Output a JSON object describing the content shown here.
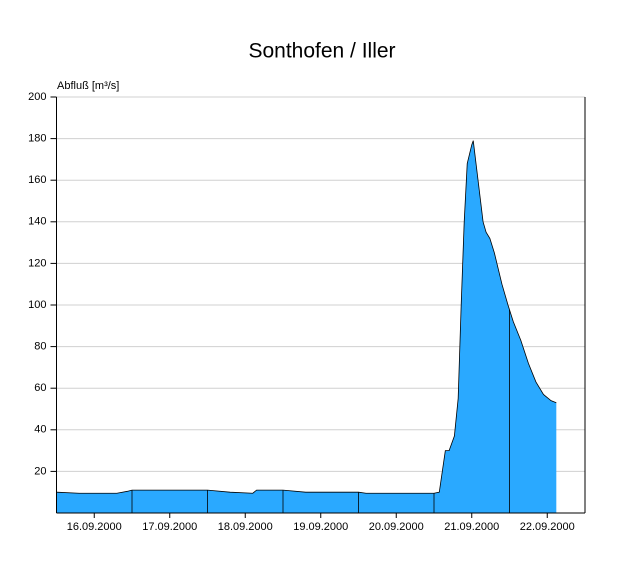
{
  "chart_data": {
    "type": "area",
    "title": "Sonthofen / Iller",
    "y_label": "Abfluß [m³/s]",
    "x": [
      0,
      0.3,
      0.8,
      0.95,
      1.0,
      2.0,
      2.3,
      2.6,
      2.65,
      3.0,
      3.3,
      4.0,
      4.1,
      5.0,
      5.07,
      5.15,
      5.2,
      5.27,
      5.32,
      5.36,
      5.4,
      5.44,
      5.5,
      5.52,
      5.55,
      5.6,
      5.65,
      5.69,
      5.74,
      5.8,
      5.9,
      5.98,
      6.05,
      6.15,
      6.25,
      6.35,
      6.45,
      6.55,
      6.62
    ],
    "values": [
      10,
      9.5,
      9.5,
      10.5,
      11,
      11,
      10,
      9.5,
      11,
      11,
      10,
      10,
      9.5,
      9.5,
      10,
      30,
      30,
      37,
      55,
      100,
      140,
      168,
      177,
      179,
      170,
      155,
      140,
      135,
      132,
      125,
      110,
      100,
      92,
      83,
      72,
      63,
      57,
      54,
      53
    ],
    "color": "#2aa9ff",
    "xlim": [
      0,
      7
    ],
    "xticks": [
      {
        "value": 0.5,
        "label": "16.09.2000"
      },
      {
        "value": 1.5,
        "label": "17.09.2000"
      },
      {
        "value": 2.5,
        "label": "18.09.2000"
      },
      {
        "value": 3.5,
        "label": "19.09.2000"
      },
      {
        "value": 4.5,
        "label": "20.09.2000"
      },
      {
        "value": 5.5,
        "label": "21.09.2000"
      },
      {
        "value": 6.5,
        "label": "22.09.2000"
      }
    ],
    "ylim": [
      0,
      200
    ],
    "yticks": [
      20,
      40,
      60,
      80,
      100,
      120,
      140,
      160,
      180,
      200
    ],
    "grid": true
  }
}
